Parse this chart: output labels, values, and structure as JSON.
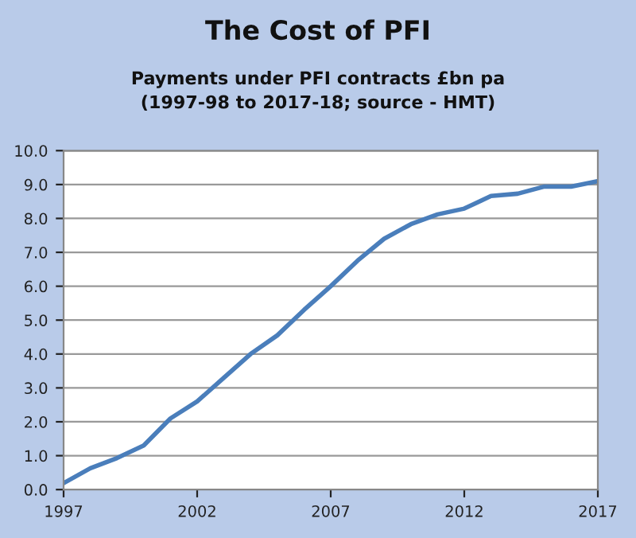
{
  "chart_data": {
    "type": "line",
    "title": "The Cost of PFI",
    "subtitle": "Payments under PFI contracts £bn pa\n(1997-98 to 2017-18; source - HMT)",
    "x": [
      1997,
      1998,
      1999,
      2000,
      2001,
      2002,
      2003,
      2004,
      2005,
      2006,
      2007,
      2008,
      2009,
      2010,
      2011,
      2012,
      2013,
      2014,
      2015,
      2016,
      2017
    ],
    "series": [
      {
        "color": "#4a7ebb",
        "values": [
          0.19,
          0.63,
          0.93,
          1.3,
          2.1,
          2.6,
          3.3,
          4.0,
          4.55,
          5.3,
          6.0,
          6.75,
          7.4,
          7.83,
          8.12,
          8.29,
          8.66,
          8.73,
          8.94,
          8.94,
          9.1
        ]
      }
    ],
    "xlim": [
      1997,
      2017
    ],
    "xticks": [
      1997,
      2002,
      2007,
      2012,
      2017
    ],
    "ylim": [
      0,
      10
    ],
    "yticks": [
      {
        "value": 0,
        "label": "0.0"
      },
      {
        "value": 1,
        "label": "1.0"
      },
      {
        "value": 2,
        "label": "2.0"
      },
      {
        "value": 3,
        "label": "3.0"
      },
      {
        "value": 4,
        "label": "4.0"
      },
      {
        "value": 5,
        "label": "5.0"
      },
      {
        "value": 6,
        "label": "6.0"
      },
      {
        "value": 7,
        "label": "7.0"
      },
      {
        "value": 8,
        "label": "8.0"
      },
      {
        "value": 9,
        "label": "9.0"
      },
      {
        "value": 10,
        "label": "10.0"
      }
    ],
    "grid": "y",
    "legend": false,
    "marker": "none",
    "line_style": "solid"
  }
}
